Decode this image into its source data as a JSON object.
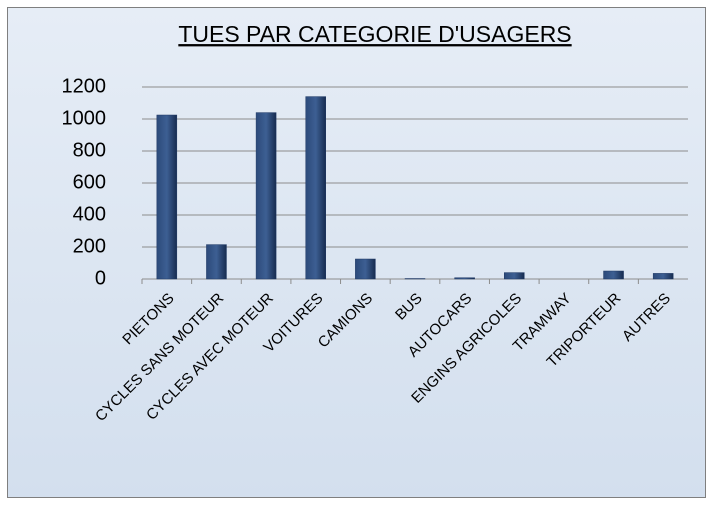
{
  "chart_data": {
    "type": "bar",
    "title": "TUES PAR CATEGORIE D'USAGERS",
    "categories": [
      "PIETONS",
      "CYCLES SANS MOTEUR",
      "CYCLES AVEC MOTEUR",
      "VOITURES",
      "CAMIONS",
      "BUS",
      "AUTOCARS",
      "ENGINS AGRICOLES",
      "TRAMWAY",
      "TRIPORTEUR",
      "AUTRES"
    ],
    "values": [
      1025,
      215,
      1040,
      1140,
      125,
      3,
      8,
      40,
      0,
      50,
      35
    ],
    "color": "#1f3864",
    "ylim": [
      0,
      1200
    ],
    "yticks": [
      0,
      200,
      400,
      600,
      800,
      1000,
      1200
    ],
    "grid": true
  }
}
